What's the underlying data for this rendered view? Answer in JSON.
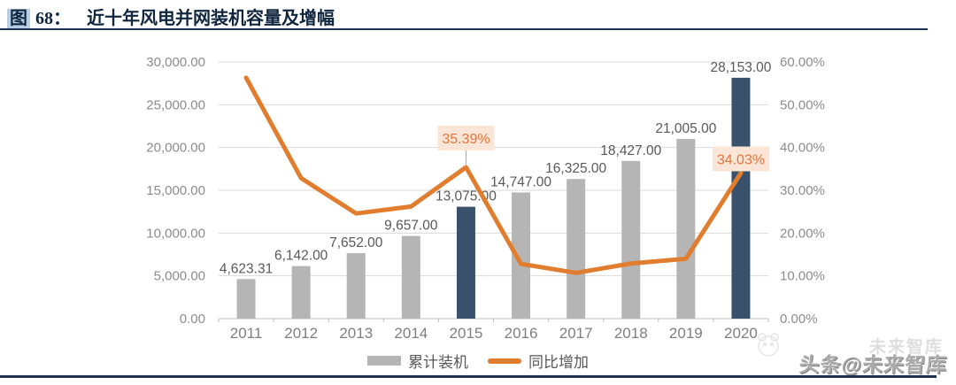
{
  "header": {
    "figure_tag": "图",
    "figure_number": "68：",
    "title": "近十年风电并网装机容量及增幅"
  },
  "chart_data": {
    "type": "combo (bar + line)",
    "categories": [
      "2011",
      "2012",
      "2013",
      "2014",
      "2015",
      "2016",
      "2017",
      "2018",
      "2019",
      "2020"
    ],
    "series": [
      {
        "name": "累计装机",
        "type": "bar",
        "axis": "left",
        "values": [
          4623.31,
          6142.0,
          7652.0,
          9657.0,
          13075.0,
          14747.0,
          16325.0,
          18427.0,
          21005.0,
          28153.0
        ],
        "data_labels": [
          "4,623.31",
          "6,142.00",
          "7,652.00",
          "9,657.00",
          "13,075.00",
          "14,747.00",
          "16,325.00",
          "18,427.00",
          "21,005.00",
          "28,153.00"
        ]
      },
      {
        "name": "同比增加",
        "type": "line",
        "axis": "right",
        "values": [
          56.3,
          32.85,
          24.58,
          26.2,
          35.39,
          12.79,
          10.7,
          12.88,
          13.99,
          34.03
        ]
      }
    ],
    "left_axis": {
      "min": 0,
      "max": 30000,
      "tick_labels": [
        "0.00",
        "5,000.00",
        "10,000.00",
        "15,000.00",
        "20,000.00",
        "25,000.00",
        "30,000.00"
      ]
    },
    "right_axis": {
      "min": 0,
      "max": 60,
      "tick_labels": [
        "0.00%",
        "10.00%",
        "20.00%",
        "30.00%",
        "40.00%",
        "50.00%",
        "60.00%"
      ]
    },
    "annotations": [
      {
        "year": "2015",
        "text": "35.39%"
      },
      {
        "year": "2020",
        "text": "34.03%"
      }
    ],
    "highlight_years": [
      "2015",
      "2020"
    ],
    "grid": true,
    "legend_position": "bottom-center"
  },
  "legend": {
    "items": [
      {
        "label": "累计装机",
        "marker": "bar",
        "color": "#b5b5b5"
      },
      {
        "label": "同比增加",
        "marker": "line",
        "color": "#e07d2e"
      }
    ]
  },
  "watermark": {
    "main": "头条@未来智库",
    "ghost": "未来智库"
  },
  "colors": {
    "bar": "#b5b5b5",
    "bar_highlight": "#3a516b",
    "line": "#e07d2e",
    "annotation_bg": "#fbe5d7",
    "annotation_text": "#e2763c",
    "grid": "#d9d9d9",
    "axis_line": "#bfbfbf",
    "connector": "#a6a6a6"
  }
}
